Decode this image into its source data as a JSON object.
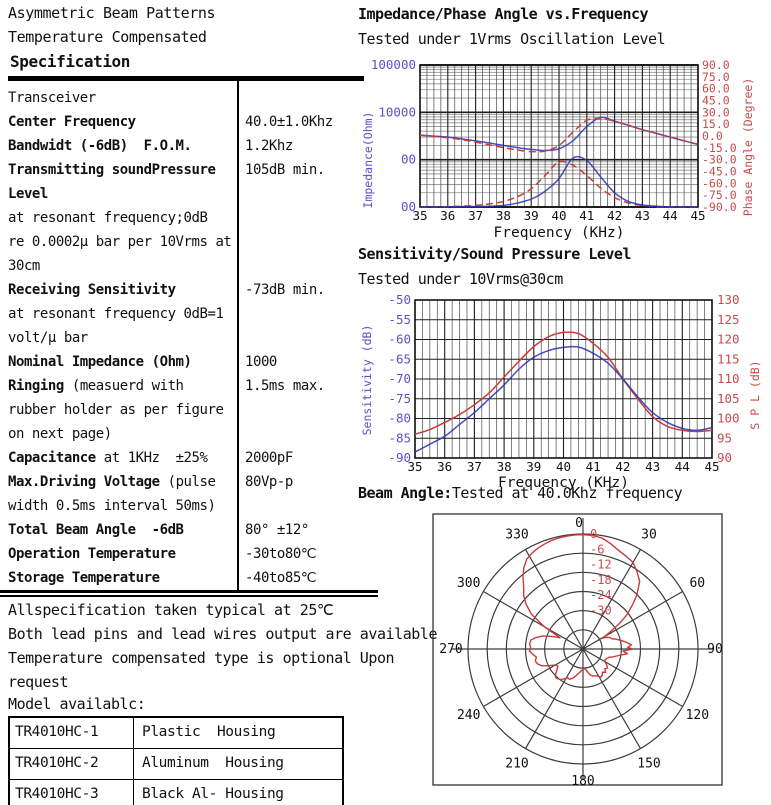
{
  "header": {
    "line1": "Asymmetric Beam Patterns",
    "line2": "Temperature Compensated",
    "line3": "Specification"
  },
  "spec_table": {
    "rows": [
      {
        "segments": [
          {
            "t": "Transceiver",
            "b": false
          }
        ],
        "value": ""
      },
      {
        "segments": [
          {
            "t": "Center Frequency",
            "b": true
          }
        ],
        "value": "40.0±1.0Khz"
      },
      {
        "segments": [
          {
            "t": "Bandwidt (-6dB)  F.O.M.",
            "b": true
          }
        ],
        "value": "1.2Khz"
      },
      {
        "segments": [
          {
            "t": "Transmitting soundPressure",
            "b": true
          }
        ],
        "value": "105dB min."
      },
      {
        "segments": [
          {
            "t": "Level",
            "b": true
          }
        ],
        "value": ""
      },
      {
        "segments": [
          {
            "t": "at resonant frequency;0dB",
            "b": false
          }
        ],
        "value": ""
      },
      {
        "segments": [
          {
            "t": "re 0.0002μ bar per 10Vrms at",
            "b": false
          }
        ],
        "value": ""
      },
      {
        "segments": [
          {
            "t": "30cm",
            "b": false
          }
        ],
        "value": ""
      },
      {
        "segments": [
          {
            "t": "Receiving Sensitivity",
            "b": true
          }
        ],
        "value": "-73dB min."
      },
      {
        "segments": [
          {
            "t": "at resonant frequency 0dB=1",
            "b": false
          }
        ],
        "value": ""
      },
      {
        "segments": [
          {
            "t": "volt/μ bar",
            "b": false
          }
        ],
        "value": ""
      },
      {
        "segments": [
          {
            "t": "Nominal Impedance (Ohm)",
            "b": true
          }
        ],
        "value": "1000"
      },
      {
        "segments": [
          {
            "t": "Ringing",
            "b": true
          },
          {
            "t": " (measuerd with",
            "b": false
          }
        ],
        "value": "1.5ms max."
      },
      {
        "segments": [
          {
            "t": "rubber holder as per figure",
            "b": false
          }
        ],
        "value": ""
      },
      {
        "segments": [
          {
            "t": "on next page)",
            "b": false
          }
        ],
        "value": ""
      },
      {
        "segments": [
          {
            "t": "Capacitance",
            "b": true
          },
          {
            "t": " at 1KHz  ±25%",
            "b": false
          }
        ],
        "value": "2000pF"
      },
      {
        "segments": [
          {
            "t": "Max.Driving Voltage",
            "b": true
          },
          {
            "t": " (pulse",
            "b": false
          }
        ],
        "value": "80Vp-p"
      },
      {
        "segments": [
          {
            "t": "width 0.5ms interval 50ms)",
            "b": false
          }
        ],
        "value": ""
      },
      {
        "segments": [
          {
            "t": "Total Beam Angle  -6dB",
            "b": true
          }
        ],
        "value": "80° ±12°"
      },
      {
        "segments": [
          {
            "t": "Operation Temperature",
            "b": true
          }
        ],
        "value": "-30to80℃"
      },
      {
        "segments": [
          {
            "t": "Storage Temperature",
            "b": true
          }
        ],
        "value": "-40to85℃"
      }
    ]
  },
  "notes": [
    "Allspecification taken typical at 25℃",
    "Both lead pins and lead wires output are available",
    "Temperature compensated type is optional Upon",
    "request"
  ],
  "model_table": {
    "title": "Model availablc:",
    "rows": [
      [
        "TR4010HC-1",
        "Plastic  Housing"
      ],
      [
        "TR4010HC-2",
        "Aluminum  Housing"
      ],
      [
        "TR4010HC-3",
        "Black Al- Housing"
      ]
    ]
  },
  "colors": {
    "blue_axis": "#5b51c9",
    "red_axis": "#c94b4b",
    "blue_curve": "#2d32b4",
    "red_curve": "#c83c3c",
    "grid_major": "#1d1d1d",
    "grid_minor": "#4a4a4a",
    "grid_log_minor": "#8f8f8f",
    "polar_grid": "#3c3c3c",
    "text": "#111111"
  },
  "chart_data": [
    {
      "id": "impedance_phase",
      "type": "line",
      "title": "Impedance/Phase Angle vs.Frequency",
      "subtitle": "Tested under 1Vrms Oscillation Level",
      "xlabel": "Frequency  (KHz)",
      "x_range": [
        35,
        45
      ],
      "x_minor_step": 0.25,
      "x_ticks": [
        "35",
        "36",
        "37",
        "38",
        "39",
        "40",
        "41",
        "42",
        "43",
        "44",
        "45"
      ],
      "y_left": {
        "label": "Impedance(Ohm)",
        "scale": "log",
        "range": [
          100,
          100000
        ],
        "tick_values": [
          100000,
          10000,
          1000,
          100
        ],
        "tick_labels": [
          "100000",
          "10000",
          "00",
          "00"
        ]
      },
      "y_right": {
        "label": "Phase Angle (Degree)",
        "range": [
          -90,
          90
        ],
        "tick_labels": [
          "90.0",
          "75.0",
          "60.0",
          "45.0",
          "30.0",
          "15.0",
          "0.0",
          "-15.0",
          "-30.0",
          "-45.0",
          "-60.0",
          "-75.0",
          "-90.0"
        ]
      },
      "x": [
        35,
        35.5,
        36,
        36.5,
        37,
        37.5,
        38,
        38.5,
        39,
        39.5,
        40,
        40.5,
        41,
        41.5,
        42,
        42.5,
        43,
        43.5,
        44,
        44.5,
        45
      ],
      "series": [
        {
          "name": "impedance",
          "axis": "left",
          "style": "solid",
          "color_key": "blue_curve",
          "y": [
            3300,
            3150,
            3000,
            2750,
            2500,
            2250,
            2000,
            1800,
            1650,
            1560,
            1700,
            2500,
            5000,
            7800,
            6500,
            5300,
            4300,
            3600,
            3000,
            2500,
            2100
          ]
        },
        {
          "name": "impedance-compensated",
          "axis": "left",
          "style": "dashed",
          "color_key": "red_curve",
          "y": [
            3300,
            3100,
            2900,
            2650,
            2350,
            2050,
            1800,
            1600,
            1480,
            1520,
            2000,
            3800,
            6800,
            7400,
            6500,
            5300,
            4300,
            3600,
            3000,
            2500,
            2100
          ]
        },
        {
          "name": "phase-compensated",
          "axis": "right",
          "style": "dashed",
          "color_key": "red_curve",
          "y": [
            -90,
            -90,
            -89.5,
            -89,
            -88,
            -86,
            -83,
            -77,
            -67,
            -50,
            -33,
            -37,
            -50,
            -66,
            -78,
            -85,
            -88,
            -89.5,
            -90,
            -90,
            -90
          ]
        },
        {
          "name": "phase",
          "axis": "right",
          "style": "solid",
          "color_key": "blue_curve",
          "y": [
            -90,
            -90,
            -90,
            -89.5,
            -89.5,
            -89,
            -88,
            -85,
            -80,
            -70,
            -54,
            -28,
            -31,
            -52,
            -72,
            -83,
            -87.5,
            -89,
            -90,
            -90,
            -90
          ]
        }
      ]
    },
    {
      "id": "sensitivity_spl",
      "type": "line",
      "title": "Sensitivity/Sound Pressure Level",
      "subtitle": "Tested under 10Vrms@30cm",
      "xlabel": "Frequency (KHz)",
      "x_range": [
        35,
        45
      ],
      "x_minor_step": 0.25,
      "x_ticks": [
        "35",
        "36",
        "37",
        "38",
        "39",
        "40",
        "41",
        "42",
        "43",
        "44",
        "45"
      ],
      "y_left": {
        "label": "Sensitivity (dB)",
        "range": [
          -90,
          -50
        ],
        "tick_labels": [
          "-50",
          "-55",
          "-60",
          "-65",
          "-70",
          "-75",
          "-80",
          "-85",
          "-90"
        ]
      },
      "y_right": {
        "label": "S P L (dB)",
        "range": [
          90,
          130
        ],
        "tick_labels": [
          "130",
          "125",
          "120",
          "115",
          "110",
          "105",
          "100",
          "95",
          "90"
        ]
      },
      "x": [
        35,
        35.5,
        36,
        36.5,
        37,
        37.5,
        38,
        38.5,
        39,
        39.5,
        40,
        40.5,
        41,
        41.5,
        42,
        42.5,
        43,
        43.5,
        44,
        44.5,
        45
      ],
      "series": [
        {
          "name": "spl",
          "axis": "right",
          "style": "solid",
          "color_key": "red_curve",
          "y": [
            96,
            97.2,
            99,
            101,
            103.5,
            106.5,
            110.5,
            114.5,
            118.2,
            120.7,
            121.8,
            121.5,
            119,
            115.5,
            110,
            105,
            100.5,
            98,
            97,
            96.7,
            97
          ]
        },
        {
          "name": "sensitivity",
          "axis": "left",
          "style": "solid",
          "color_key": "blue_curve",
          "y": [
            -88.5,
            -86.5,
            -84.5,
            -81.5,
            -78.5,
            -75,
            -71.5,
            -67.5,
            -64.5,
            -62.8,
            -62,
            -61.9,
            -63.5,
            -66,
            -70,
            -74.5,
            -78.5,
            -81,
            -82.5,
            -83,
            -82.3
          ]
        }
      ]
    },
    {
      "id": "beam_angle",
      "type": "polar",
      "title_bold": "Beam Angle:",
      "title_rest": "Tested at 40.0Khz frequency",
      "angle_ticks": [
        "0",
        "30",
        "60",
        "90",
        "120",
        "150",
        "180",
        "210",
        "240",
        "270",
        "300",
        "330"
      ],
      "ring_labels": [
        "0",
        "-6",
        "-12",
        "-18",
        "-24",
        "-30"
      ],
      "ring_db": [
        0,
        -6,
        -12,
        -18,
        -24,
        -30
      ],
      "center_db": -36,
      "pattern": [
        [
          0,
          -0.2
        ],
        [
          5,
          -0.3
        ],
        [
          10,
          -0.8
        ],
        [
          15,
          -2
        ],
        [
          20,
          -3.2
        ],
        [
          25,
          -4
        ],
        [
          30,
          -4.7
        ],
        [
          35,
          -6.5
        ],
        [
          40,
          -8.4
        ],
        [
          45,
          -12.2
        ],
        [
          48,
          -15
        ],
        [
          52,
          -18.5
        ],
        [
          55,
          -22
        ],
        [
          58,
          -26
        ],
        [
          61,
          -29
        ],
        [
          63,
          -28
        ],
        [
          66,
          -27
        ],
        [
          70,
          -26.5
        ],
        [
          74,
          -25
        ],
        [
          78,
          -23.5
        ],
        [
          82,
          -22
        ],
        [
          85,
          -20.8
        ],
        [
          88,
          -22
        ],
        [
          90,
          -20.3
        ],
        [
          93,
          -23.5
        ],
        [
          96,
          -22
        ],
        [
          100,
          -24.5
        ],
        [
          104,
          -26
        ],
        [
          108,
          -27.5
        ],
        [
          112,
          -28
        ],
        [
          116,
          -28.3
        ],
        [
          120,
          -28
        ],
        [
          124,
          -27
        ],
        [
          128,
          -26.3
        ],
        [
          132,
          -26.8
        ],
        [
          136,
          -25.8
        ],
        [
          140,
          -26.5
        ],
        [
          144,
          -25.8
        ],
        [
          148,
          -25.6
        ],
        [
          152,
          -26.5
        ],
        [
          156,
          -26.8
        ],
        [
          160,
          -27
        ],
        [
          164,
          -27.5
        ],
        [
          168,
          -28.5
        ],
        [
          172,
          -29.5
        ],
        [
          176,
          -29.8
        ],
        [
          180,
          -29.7
        ],
        [
          184,
          -29.2
        ],
        [
          188,
          -28.6
        ],
        [
          192,
          -28
        ],
        [
          196,
          -27
        ],
        [
          200,
          -26.2
        ],
        [
          204,
          -25.6
        ],
        [
          208,
          -25.8
        ],
        [
          212,
          -25
        ],
        [
          216,
          -24.2
        ],
        [
          220,
          -23.8
        ],
        [
          224,
          -23.6
        ],
        [
          228,
          -24.5
        ],
        [
          232,
          -25.8
        ],
        [
          236,
          -26.5
        ],
        [
          240,
          -26
        ],
        [
          244,
          -24
        ],
        [
          248,
          -22
        ],
        [
          252,
          -21
        ],
        [
          256,
          -20.6
        ],
        [
          260,
          -21.2
        ],
        [
          264,
          -20.2
        ],
        [
          268,
          -19.2
        ],
        [
          272,
          -19.6
        ],
        [
          276,
          -19.2
        ],
        [
          280,
          -19.5
        ],
        [
          284,
          -21
        ],
        [
          288,
          -22.8
        ],
        [
          292,
          -25.5
        ],
        [
          296,
          -28
        ],
        [
          300,
          -22
        ],
        [
          304,
          -16.5
        ],
        [
          308,
          -13.5
        ],
        [
          312,
          -11
        ],
        [
          316,
          -9.3
        ],
        [
          320,
          -6.8
        ],
        [
          324,
          -4.5
        ],
        [
          328,
          -2.8
        ],
        [
          332,
          -2
        ],
        [
          336,
          -1.4
        ],
        [
          340,
          -1
        ],
        [
          344,
          -0.6
        ],
        [
          348,
          -0.4
        ],
        [
          352,
          -0.3
        ],
        [
          356,
          -0.2
        ]
      ]
    }
  ]
}
